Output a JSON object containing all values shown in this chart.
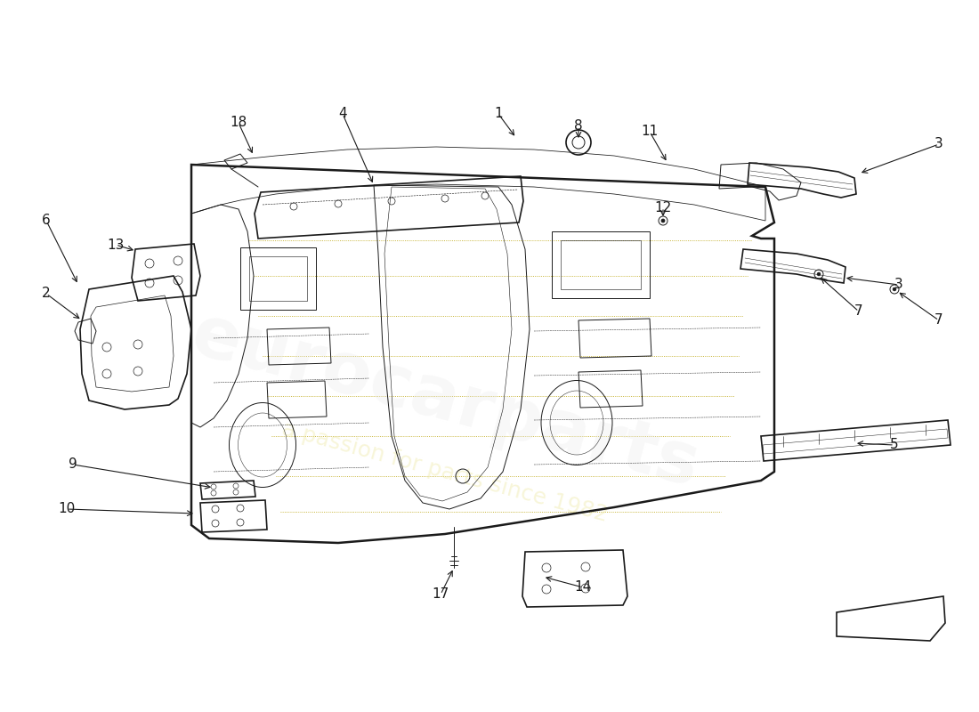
{
  "background_color": "#ffffff",
  "line_color": "#1a1a1a",
  "lw_main": 1.2,
  "lw_thin": 0.7,
  "lw_thick": 1.8,
  "label_fontsize": 11,
  "watermark1": "eurocarparts",
  "watermark2": "a passion for parts since 1982",
  "part_labels": [
    [
      "1",
      560,
      128
    ],
    [
      "2",
      52,
      330
    ],
    [
      "3",
      1055,
      162
    ],
    [
      "3",
      1010,
      320
    ],
    [
      "4",
      385,
      128
    ],
    [
      "5",
      1005,
      500
    ],
    [
      "6",
      52,
      248
    ],
    [
      "7",
      965,
      350
    ],
    [
      "7",
      1055,
      360
    ],
    [
      "8",
      650,
      142
    ],
    [
      "9",
      82,
      522
    ],
    [
      "10",
      75,
      572
    ],
    [
      "11",
      730,
      148
    ],
    [
      "12",
      745,
      233
    ],
    [
      "13",
      130,
      275
    ],
    [
      "14",
      655,
      660
    ],
    [
      "17",
      495,
      668
    ],
    [
      "18",
      268,
      138
    ]
  ]
}
